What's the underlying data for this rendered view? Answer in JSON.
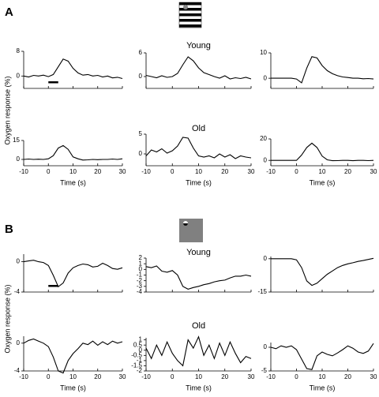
{
  "panels": [
    {
      "label": "A",
      "ylabel": "Oxygen response (%)"
    },
    {
      "label": "B",
      "ylabel": "Oxygen response (%)"
    }
  ],
  "chart_data": [
    {
      "type": "line",
      "x": [
        -10,
        -8,
        -6,
        -4,
        -2,
        0,
        2,
        4,
        6,
        8,
        10,
        12,
        14,
        16,
        18,
        20,
        22,
        24,
        26,
        28,
        30
      ],
      "values": [
        0,
        -0.3,
        0.2,
        0,
        0.3,
        -0.2,
        0.5,
        3,
        5.5,
        4.8,
        2.5,
        1,
        0.3,
        0.5,
        0,
        0.2,
        -0.3,
        0,
        -0.6,
        -0.4,
        -0.8
      ],
      "xlim": [
        -10,
        30
      ],
      "xticks": [
        -10,
        0,
        10,
        20,
        30
      ],
      "ylim": [
        -4,
        8
      ],
      "yticks": [
        0,
        8
      ],
      "xtick_labels": false,
      "stimulus": [
        0,
        4
      ],
      "color": "#000000"
    },
    {
      "type": "line",
      "title": "Young",
      "x": [
        -10,
        -8,
        -6,
        -4,
        -2,
        0,
        2,
        4,
        6,
        8,
        10,
        12,
        14,
        16,
        18,
        20,
        22,
        24,
        26,
        28,
        30
      ],
      "values": [
        0.3,
        0,
        -0.3,
        0.2,
        -0.2,
        0,
        0.8,
        3,
        5,
        4,
        2.2,
        1,
        0.5,
        0,
        -0.4,
        0.2,
        -0.6,
        -0.3,
        -0.5,
        -0.2,
        -0.6
      ],
      "xlim": [
        -10,
        30
      ],
      "xticks": [
        -10,
        0,
        10,
        20,
        30
      ],
      "ylim": [
        -3,
        6
      ],
      "yticks": [
        0,
        6
      ],
      "xtick_labels": false,
      "color": "#000000"
    },
    {
      "type": "line",
      "x": [
        -10,
        -8,
        -6,
        -4,
        -2,
        0,
        2,
        4,
        6,
        8,
        10,
        12,
        14,
        16,
        18,
        20,
        22,
        24,
        26,
        28,
        30
      ],
      "values": [
        0,
        0,
        0,
        0,
        0,
        -0.3,
        -1.8,
        4,
        8.5,
        8,
        5,
        3,
        1.8,
        1,
        0.5,
        0.3,
        0,
        0,
        -0.2,
        -0.1,
        -0.3
      ],
      "xlim": [
        -10,
        30
      ],
      "xticks": [
        -10,
        0,
        10,
        20,
        30
      ],
      "ylim": [
        -4,
        10
      ],
      "yticks": [
        0,
        10
      ],
      "xtick_labels": false,
      "color": "#000000"
    },
    {
      "type": "line",
      "x": [
        -10,
        -8,
        -6,
        -4,
        -2,
        0,
        2,
        4,
        6,
        8,
        10,
        12,
        14,
        16,
        18,
        20,
        22,
        24,
        26,
        28,
        30
      ],
      "values": [
        0,
        0.3,
        0,
        0.2,
        0,
        0.5,
        3,
        9,
        11,
        8,
        2,
        0.5,
        -0.5,
        -0.3,
        0,
        -0.2,
        0,
        0,
        0.3,
        0,
        0.5
      ],
      "xlim": [
        -10,
        30
      ],
      "xticks": [
        -10,
        0,
        10,
        20,
        30
      ],
      "ylim": [
        -5,
        15
      ],
      "yticks": [
        0,
        15
      ],
      "xtick_labels": true,
      "xlabel": "Time (s)",
      "color": "#000000"
    },
    {
      "type": "line",
      "title": "Old",
      "x": [
        -10,
        -8,
        -6,
        -4,
        -2,
        0,
        2,
        4,
        6,
        8,
        10,
        12,
        14,
        16,
        18,
        20,
        22,
        24,
        26,
        28,
        30
      ],
      "values": [
        -0.5,
        1,
        0.5,
        1.3,
        0.2,
        0.8,
        2,
        4.2,
        4,
        1.5,
        -0.5,
        -0.8,
        -0.5,
        -1,
        0,
        -0.8,
        -0.2,
        -1.2,
        -0.5,
        -0.8,
        -1
      ],
      "xlim": [
        -10,
        30
      ],
      "xticks": [
        -10,
        0,
        10,
        20,
        30
      ],
      "ylim": [
        -3,
        5
      ],
      "yticks": [
        0,
        5
      ],
      "xtick_labels": true,
      "xlabel": "Time (s)",
      "color": "#000000"
    },
    {
      "type": "line",
      "x": [
        -10,
        -8,
        -6,
        -4,
        -2,
        0,
        2,
        4,
        6,
        8,
        10,
        12,
        14,
        16,
        18,
        20,
        22,
        24,
        26,
        28,
        30
      ],
      "values": [
        0,
        0,
        0,
        0,
        0,
        0,
        5,
        12,
        16,
        12,
        4,
        0.5,
        -0.3,
        -0.2,
        0,
        0,
        -0.3,
        0,
        0,
        -0.2,
        0
      ],
      "xlim": [
        -10,
        30
      ],
      "xticks": [
        -10,
        0,
        10,
        20,
        30
      ],
      "ylim": [
        -5,
        20
      ],
      "yticks": [
        0,
        20
      ],
      "xtick_labels": true,
      "xlabel": "Time (s)",
      "color": "#000000"
    },
    {
      "type": "line",
      "x": [
        -10,
        -8,
        -6,
        -4,
        -2,
        0,
        2,
        4,
        6,
        8,
        10,
        12,
        14,
        16,
        18,
        20,
        22,
        24,
        26,
        28,
        30
      ],
      "values": [
        0,
        0.1,
        0.2,
        0,
        -0.1,
        -0.5,
        -1.8,
        -3.3,
        -2.8,
        -1.5,
        -0.8,
        -0.5,
        -0.3,
        -0.4,
        -0.7,
        -0.6,
        -0.2,
        -0.5,
        -0.9,
        -1,
        -0.8
      ],
      "xlim": [
        -10,
        30
      ],
      "xticks": [
        -10,
        0,
        10,
        20,
        30
      ],
      "ylim": [
        -4,
        1
      ],
      "yticks": [
        0,
        -4
      ],
      "xtick_labels": false,
      "stimulus": [
        0,
        4
      ],
      "color": "#000000"
    },
    {
      "type": "line",
      "title": "Young",
      "x": [
        -10,
        -8,
        -6,
        -4,
        -2,
        0,
        2,
        4,
        6,
        8,
        10,
        12,
        14,
        16,
        18,
        20,
        22,
        24,
        26,
        28,
        30
      ],
      "values": [
        0.5,
        0.3,
        0.6,
        -0.3,
        -0.5,
        -0.2,
        -1,
        -3,
        -3.5,
        -3.2,
        -3,
        -2.7,
        -2.5,
        -2.2,
        -2,
        -1.9,
        -1.5,
        -1.2,
        -1.2,
        -1,
        -1.2
      ],
      "xlim": [
        -10,
        30
      ],
      "xticks": [
        -10,
        0,
        10,
        20,
        30
      ],
      "ylim": [
        -4,
        2
      ],
      "yticks": [
        2,
        1,
        0,
        -1,
        -2,
        -3,
        -4
      ],
      "xtick_labels": false,
      "color": "#000000"
    },
    {
      "type": "line",
      "x": [
        -10,
        -8,
        -6,
        -4,
        -2,
        0,
        2,
        4,
        6,
        8,
        10,
        12,
        14,
        16,
        18,
        20,
        22,
        24,
        26,
        28,
        30
      ],
      "values": [
        0,
        0,
        0,
        0,
        0,
        -0.5,
        -4,
        -10,
        -12,
        -11,
        -9,
        -7,
        -5.5,
        -4,
        -3,
        -2.3,
        -1.8,
        -1.2,
        -0.8,
        -0.3,
        0.2
      ],
      "xlim": [
        -10,
        30
      ],
      "xticks": [
        -10,
        0,
        10,
        20,
        30
      ],
      "ylim": [
        -15,
        1
      ],
      "yticks": [
        0,
        -15
      ],
      "xtick_labels": false,
      "color": "#000000"
    },
    {
      "type": "line",
      "x": [
        -10,
        -8,
        -6,
        -4,
        -2,
        0,
        2,
        4,
        6,
        8,
        10,
        12,
        14,
        16,
        18,
        20,
        22,
        24,
        26,
        28,
        30
      ],
      "values": [
        0,
        0.4,
        0.6,
        0.3,
        0,
        -0.5,
        -2,
        -4,
        -4.3,
        -2.5,
        -1.5,
        -0.8,
        0,
        -0.2,
        0.3,
        -0.3,
        0.2,
        -0.2,
        0.3,
        0,
        0.2
      ],
      "xlim": [
        -10,
        30
      ],
      "xticks": [
        -10,
        0,
        10,
        20,
        30
      ],
      "ylim": [
        -4,
        1
      ],
      "yticks": [
        0,
        -4
      ],
      "xtick_labels": true,
      "xlabel": "Time (s)",
      "color": "#000000"
    },
    {
      "type": "line",
      "title": "Old",
      "x": [
        -10,
        -8,
        -6,
        -4,
        -2,
        0,
        2,
        4,
        6,
        8,
        10,
        12,
        14,
        16,
        18,
        20,
        22,
        24,
        26,
        28,
        30
      ],
      "values": [
        0.2,
        -0.8,
        0.5,
        -0.5,
        0.8,
        -0.3,
        -1,
        -1.5,
        1,
        0.2,
        1.3,
        -0.5,
        0.5,
        -0.8,
        0.7,
        -0.5,
        0.8,
        -0.3,
        -1.2,
        -0.6,
        -0.8
      ],
      "xlim": [
        -10,
        30
      ],
      "xticks": [
        -10,
        0,
        10,
        20,
        30
      ],
      "ylim": [
        -2,
        1.2
      ],
      "yticks": [
        1,
        0.5,
        0,
        -0.5,
        -1,
        -1.5,
        -2
      ],
      "xtick_labels": true,
      "xlabel": "Time (s)",
      "color": "#000000"
    },
    {
      "type": "line",
      "x": [
        -10,
        -8,
        -6,
        -4,
        -2,
        0,
        2,
        4,
        6,
        8,
        10,
        12,
        14,
        16,
        18,
        20,
        22,
        24,
        26,
        28,
        30
      ],
      "values": [
        0,
        -0.3,
        0.3,
        0,
        0.3,
        -0.5,
        -2.5,
        -4.5,
        -4.7,
        -1.8,
        -1,
        -1.5,
        -1.8,
        -1.2,
        -0.5,
        0.3,
        -0.2,
        -1,
        -1.3,
        -0.8,
        0.8
      ],
      "xlim": [
        -10,
        30
      ],
      "xticks": [
        -10,
        0,
        10,
        20,
        30
      ],
      "ylim": [
        -5,
        1
      ],
      "yticks": [
        0,
        -5
      ],
      "xtick_labels": true,
      "xlabel": "Time (s)",
      "color": "#000000"
    }
  ]
}
